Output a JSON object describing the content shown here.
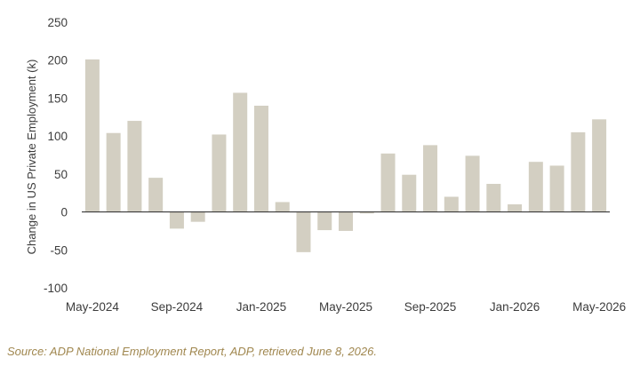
{
  "chart_data": {
    "type": "bar",
    "title": "",
    "xlabel": "",
    "ylabel": "Change in US Private Employment (k)",
    "ylim": [
      -100,
      250
    ],
    "yticks": [
      250,
      200,
      150,
      100,
      50,
      0,
      -50,
      -100
    ],
    "grid": false,
    "categories": [
      "May-2024",
      "Jun-2024",
      "Jul-2024",
      "Aug-2024",
      "Sep-2024",
      "Oct-2024",
      "Nov-2024",
      "Dec-2024",
      "Jan-2025",
      "Feb-2025",
      "Mar-2025",
      "Apr-2025",
      "May-2025",
      "Jun-2025",
      "Jul-2025",
      "Aug-2025",
      "Sep-2025",
      "Oct-2025",
      "Nov-2025",
      "Dec-2025",
      "Jan-2026",
      "Feb-2026",
      "Mar-2026",
      "Apr-2026",
      "May-2026"
    ],
    "x_tick_labels": [
      "May-2024",
      "Sep-2024",
      "Jan-2025",
      "May-2025",
      "Sep-2025",
      "Jan-2026",
      "May-2026"
    ],
    "values": [
      201,
      104,
      120,
      45,
      -22,
      -13,
      102,
      157,
      140,
      13,
      -53,
      -24,
      -25,
      -2,
      77,
      49,
      88,
      20,
      74,
      37,
      10,
      66,
      61,
      105,
      122
    ],
    "bar_color": "#d3cfc2",
    "zero_line_color": "#3a3a3a"
  },
  "source_note": "Source: ADP National Employment Report, ADP, retrieved June 8, 2026.",
  "colors": {
    "tick_text": "#3c3c3c",
    "source_text": "#a0874f"
  }
}
